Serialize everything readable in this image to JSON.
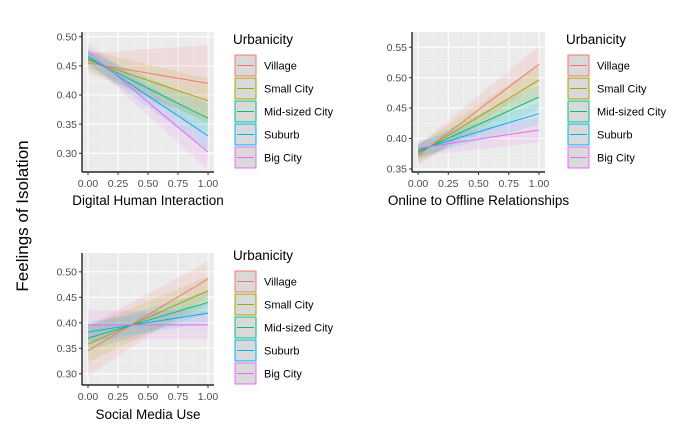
{
  "y_axis_label": "Feelings of Isolation",
  "legend_title": "Urbanicity",
  "groups": [
    {
      "name": "Village",
      "color": "#F8766D"
    },
    {
      "name": "Small City",
      "color": "#A3A500"
    },
    {
      "name": "Mid-sized City",
      "color": "#00BF7D"
    },
    {
      "name": "Suburb",
      "color": "#00B0F6"
    },
    {
      "name": "Big City",
      "color": "#E76BF3"
    }
  ],
  "chart_data": [
    {
      "type": "line",
      "xlabel": "Digital Human Interaction",
      "xlim": [
        -0.05,
        1.05
      ],
      "ylim": [
        0.268,
        0.508
      ],
      "xticks": [
        "0.00",
        "0.25",
        "0.50",
        "0.75",
        "1.00"
      ],
      "yticks": [
        "0.30",
        "0.35",
        "0.40",
        "0.45",
        "0.50"
      ],
      "grid": true,
      "legend_position": "right",
      "series": [
        {
          "name": "Village",
          "x": [
            0,
            1
          ],
          "y": [
            0.455,
            0.42
          ],
          "ci_start": [
            0.438,
            0.472
          ],
          "ci_end": [
            0.355,
            0.485
          ]
        },
        {
          "name": "Small City",
          "x": [
            0,
            1
          ],
          "y": [
            0.46,
            0.39
          ],
          "ci_start": [
            0.443,
            0.477
          ],
          "ci_end": [
            0.352,
            0.428
          ]
        },
        {
          "name": "Mid-sized City",
          "x": [
            0,
            1
          ],
          "y": [
            0.463,
            0.36
          ],
          "ci_start": [
            0.45,
            0.476
          ],
          "ci_end": [
            0.335,
            0.385
          ]
        },
        {
          "name": "Suburb",
          "x": [
            0,
            1
          ],
          "y": [
            0.467,
            0.33
          ],
          "ci_start": [
            0.453,
            0.481
          ],
          "ci_end": [
            0.305,
            0.355
          ]
        },
        {
          "name": "Big City",
          "x": [
            0,
            1
          ],
          "y": [
            0.474,
            0.302
          ],
          "ci_start": [
            0.458,
            0.49
          ],
          "ci_end": [
            0.272,
            0.332
          ]
        }
      ]
    },
    {
      "type": "line",
      "xlabel": "Online to Offline Relationships",
      "xlim": [
        -0.05,
        1.05
      ],
      "ylim": [
        0.345,
        0.575
      ],
      "xticks": [
        "0.00",
        "0.25",
        "0.50",
        "0.75",
        "1.00"
      ],
      "yticks": [
        "0.35",
        "0.40",
        "0.45",
        "0.50",
        "0.55"
      ],
      "grid": true,
      "legend_position": "right",
      "series": [
        {
          "name": "Village",
          "x": [
            0,
            1
          ],
          "y": [
            0.372,
            0.522
          ],
          "ci_start": [
            0.355,
            0.389
          ],
          "ci_end": [
            0.492,
            0.552
          ]
        },
        {
          "name": "Small City",
          "x": [
            0,
            1
          ],
          "y": [
            0.375,
            0.496
          ],
          "ci_start": [
            0.36,
            0.39
          ],
          "ci_end": [
            0.47,
            0.522
          ]
        },
        {
          "name": "Mid-sized City",
          "x": [
            0,
            1
          ],
          "y": [
            0.378,
            0.468
          ],
          "ci_start": [
            0.365,
            0.391
          ],
          "ci_end": [
            0.448,
            0.488
          ]
        },
        {
          "name": "Suburb",
          "x": [
            0,
            1
          ],
          "y": [
            0.381,
            0.441
          ],
          "ci_start": [
            0.369,
            0.393
          ],
          "ci_end": [
            0.423,
            0.459
          ]
        },
        {
          "name": "Big City",
          "x": [
            0,
            1
          ],
          "y": [
            0.384,
            0.414
          ],
          "ci_start": [
            0.37,
            0.398
          ],
          "ci_end": [
            0.394,
            0.434
          ]
        }
      ]
    },
    {
      "type": "line",
      "xlabel": "Social Media Use",
      "xlim": [
        -0.05,
        1.05
      ],
      "ylim": [
        0.278,
        0.537
      ],
      "xticks": [
        "0.00",
        "0.25",
        "0.50",
        "0.75",
        "1.00"
      ],
      "yticks": [
        "0.30",
        "0.35",
        "0.40",
        "0.45",
        "0.50"
      ],
      "grid": true,
      "legend_position": "right",
      "series": [
        {
          "name": "Village",
          "x": [
            0,
            1
          ],
          "y": [
            0.345,
            0.486
          ],
          "ci_start": [
            0.295,
            0.395
          ],
          "ci_end": [
            0.452,
            0.52
          ]
        },
        {
          "name": "Small City",
          "x": [
            0,
            1
          ],
          "y": [
            0.358,
            0.463
          ],
          "ci_start": [
            0.322,
            0.394
          ],
          "ci_end": [
            0.435,
            0.491
          ]
        },
        {
          "name": "Mid-sized City",
          "x": [
            0,
            1
          ],
          "y": [
            0.37,
            0.44
          ],
          "ci_start": [
            0.345,
            0.395
          ],
          "ci_end": [
            0.418,
            0.462
          ]
        },
        {
          "name": "Suburb",
          "x": [
            0,
            1
          ],
          "y": [
            0.382,
            0.419
          ],
          "ci_start": [
            0.362,
            0.402
          ],
          "ci_end": [
            0.4,
            0.438
          ]
        },
        {
          "name": "Big City",
          "x": [
            0,
            1
          ],
          "y": [
            0.396,
            0.396
          ],
          "ci_start": [
            0.366,
            0.426
          ],
          "ci_end": [
            0.369,
            0.423
          ]
        }
      ]
    }
  ]
}
